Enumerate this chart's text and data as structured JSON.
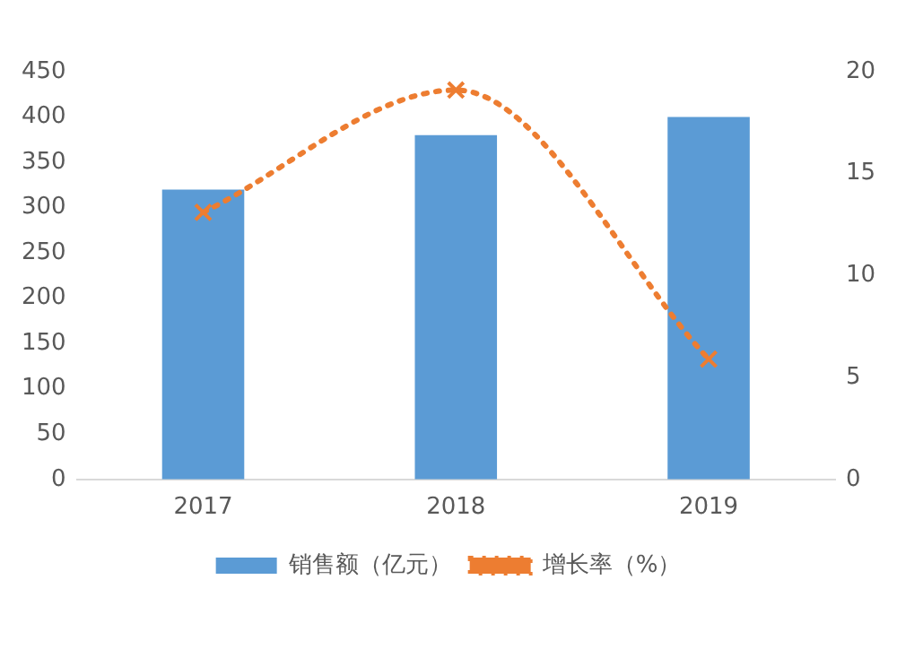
{
  "chart_data": {
    "type": "bar",
    "categories": [
      "2017",
      "2018",
      "2019"
    ],
    "series": [
      {
        "name": "销售额（亿元）",
        "color": "#5b9bd5",
        "values": [
          320,
          380,
          400
        ]
      },
      {
        "name": "增长率（%）",
        "type": "line",
        "axis": "y2",
        "color": "#ed7d31",
        "values": [
          13.1,
          19.1,
          5.9
        ],
        "marker": "cross",
        "line_style": "dotted"
      }
    ],
    "ylim": [
      0,
      450
    ],
    "yticks": [
      0,
      50,
      100,
      150,
      200,
      250,
      300,
      350,
      400,
      450
    ],
    "y2lim": [
      0,
      20
    ],
    "y2ticks": [
      0,
      5,
      10,
      15,
      20
    ],
    "grid": false,
    "legend": "bottom"
  }
}
